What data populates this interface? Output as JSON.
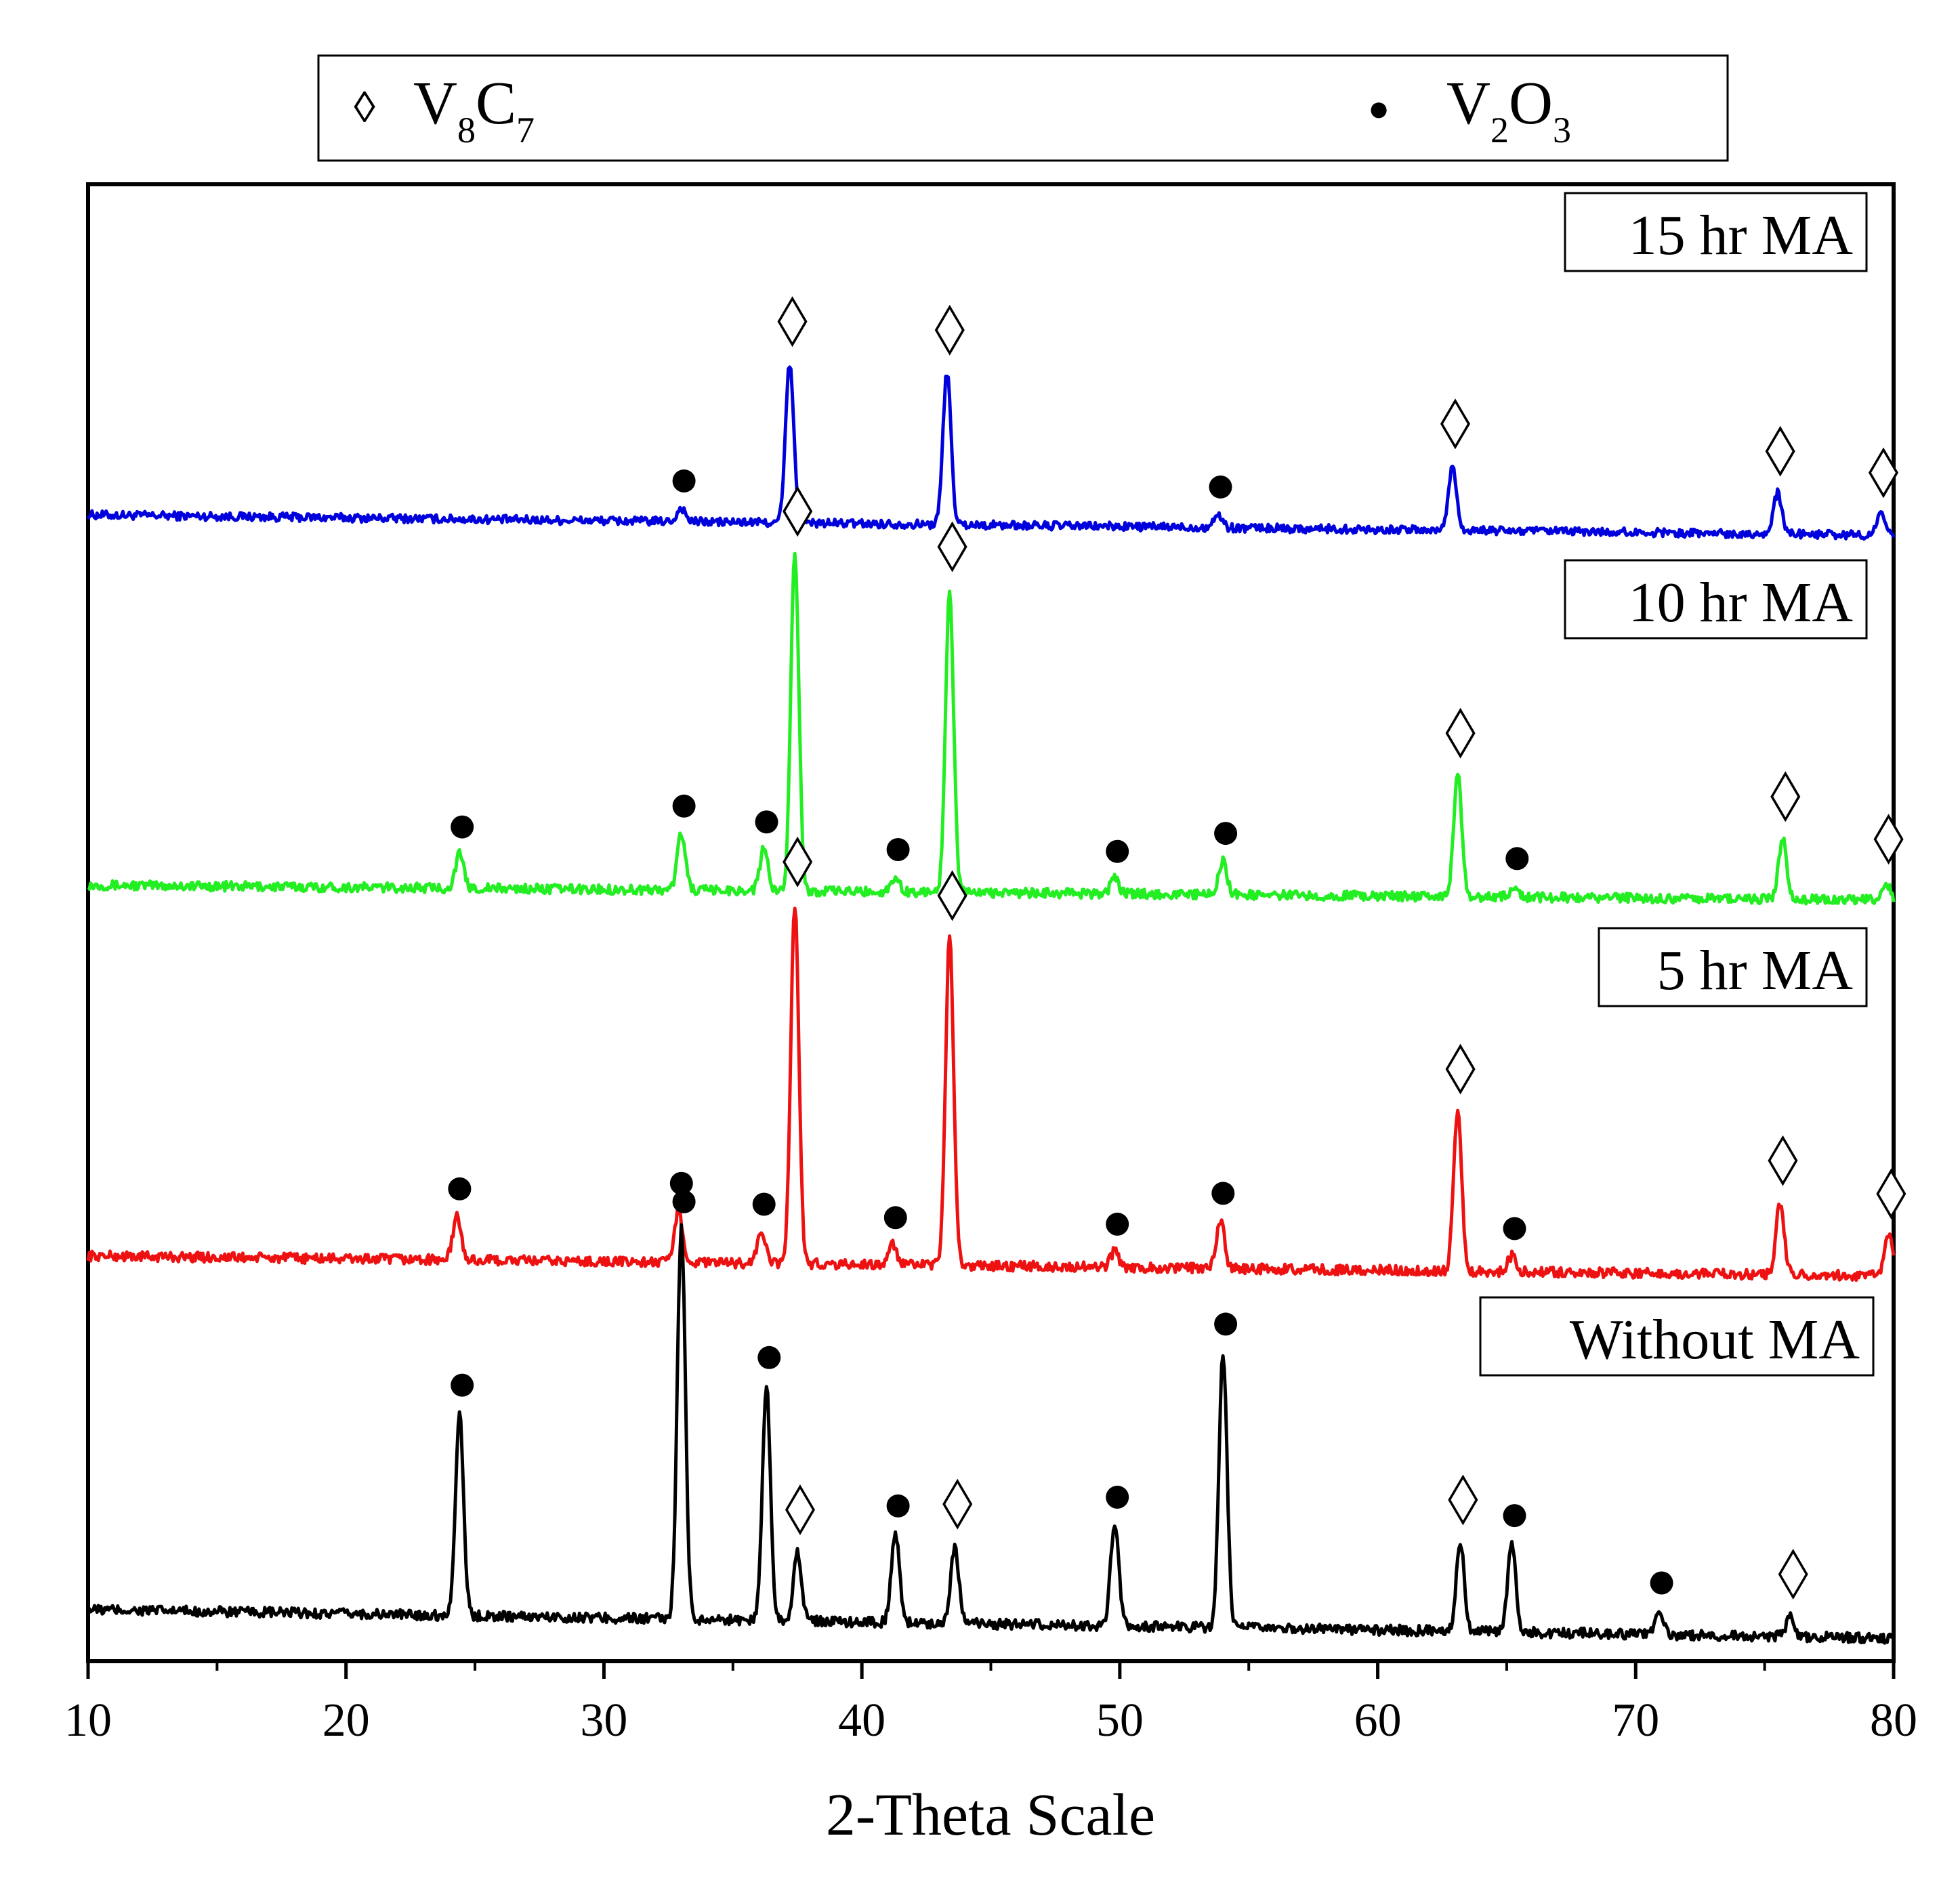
{
  "chart_data": {
    "type": "line",
    "title": "",
    "xlabel": "2-Theta Scale",
    "ylabel": "",
    "xlim": [
      10,
      80
    ],
    "x_ticks": [
      "10",
      "20",
      "30",
      "40",
      "50",
      "60",
      "70",
      "80"
    ],
    "legend": [
      {
        "marker": "diamond",
        "symbol": "◊",
        "base": "V",
        "sub1": "8",
        "mid": "C",
        "sub2": "7",
        "name": "V8C7"
      },
      {
        "marker": "circle",
        "symbol": "●",
        "base": "V",
        "sub1": "2",
        "mid": "O",
        "sub2": "3",
        "name": "V2O3"
      }
    ],
    "series": [
      {
        "name": "15 hr MA",
        "color": "#0000dd",
        "baseline": 0.08,
        "scale": 0.38,
        "start": 0.12,
        "peaks": [
          {
            "x": 33.0,
            "h": 0.04,
            "phase": "V2O3"
          },
          {
            "x": 37.2,
            "h": 0.47,
            "phase": "V8C7"
          },
          {
            "x": 43.3,
            "h": 0.45,
            "phase": "V8C7"
          },
          {
            "x": 53.8,
            "h": 0.04,
            "phase": "V2O3"
          },
          {
            "x": 62.9,
            "h": 0.19,
            "phase": "V8C7"
          },
          {
            "x": 75.5,
            "h": 0.12,
            "phase": "V8C7"
          },
          {
            "x": 79.5,
            "h": 0.06,
            "phase": "V8C7"
          }
        ]
      },
      {
        "name": "10 hr MA",
        "color": "#22ee22",
        "baseline": 0.09,
        "scale": 0.55,
        "start": 0.08,
        "peaks": [
          {
            "x": 24.4,
            "h": 0.09,
            "phase": "V2O3"
          },
          {
            "x": 33.0,
            "h": 0.15,
            "phase": "V2O3"
          },
          {
            "x": 36.2,
            "h": 0.11,
            "phase": "V2O3"
          },
          {
            "x": 37.4,
            "h": 0.89,
            "phase": "V8C7"
          },
          {
            "x": 41.3,
            "h": 0.04,
            "phase": "V2O3"
          },
          {
            "x": 43.4,
            "h": 0.8,
            "phase": "V8C7"
          },
          {
            "x": 49.8,
            "h": 0.04,
            "phase": "V2O3"
          },
          {
            "x": 54.0,
            "h": 0.09,
            "phase": "V2O3"
          },
          {
            "x": 63.1,
            "h": 0.32,
            "phase": "V8C7"
          },
          {
            "x": 65.3,
            "h": 0.03,
            "phase": "V2O3"
          },
          {
            "x": 75.7,
            "h": 0.16,
            "phase": "V8C7"
          },
          {
            "x": 79.7,
            "h": 0.05,
            "phase": "V8C7"
          }
        ]
      },
      {
        "name": "5 hr MA",
        "color": "#ee1111",
        "baseline": 0.1,
        "scale": 0.58,
        "start": 0.1,
        "peaks": [
          {
            "x": 24.3,
            "h": 0.11,
            "phase": "V2O3"
          },
          {
            "x": 32.9,
            "h": 0.13,
            "phase": "V2O3"
          },
          {
            "x": 36.1,
            "h": 0.08,
            "phase": "V2O3"
          },
          {
            "x": 37.4,
            "h": 0.9,
            "phase": "V8C7"
          },
          {
            "x": 41.2,
            "h": 0.05,
            "phase": "V2O3"
          },
          {
            "x": 43.4,
            "h": 0.82,
            "phase": "V8C7"
          },
          {
            "x": 49.8,
            "h": 0.04,
            "phase": "V2O3"
          },
          {
            "x": 53.9,
            "h": 0.12,
            "phase": "V2O3"
          },
          {
            "x": 63.1,
            "h": 0.4,
            "phase": "V8C7"
          },
          {
            "x": 65.2,
            "h": 0.04,
            "phase": "V2O3"
          },
          {
            "x": 75.6,
            "h": 0.18,
            "phase": "V8C7"
          },
          {
            "x": 79.8,
            "h": 0.1,
            "phase": "V8C7"
          }
        ]
      },
      {
        "name": "Without MA",
        "color": "#000000",
        "baseline": 0.12,
        "scale": 0.8,
        "start": 0.14,
        "peaks": [
          {
            "x": 24.4,
            "h": 0.5,
            "phase": "V2O3"
          },
          {
            "x": 33.0,
            "h": 0.96,
            "phase": "V2O3"
          },
          {
            "x": 36.3,
            "h": 0.58,
            "phase": "V2O3"
          },
          {
            "x": 37.5,
            "h": 0.17,
            "phase": "V8C7"
          },
          {
            "x": 41.3,
            "h": 0.22,
            "phase": "V2O3"
          },
          {
            "x": 43.6,
            "h": 0.19,
            "phase": "V8C7"
          },
          {
            "x": 49.8,
            "h": 0.25,
            "phase": "V2O3"
          },
          {
            "x": 54.0,
            "h": 0.68,
            "phase": "V2O3"
          },
          {
            "x": 63.2,
            "h": 0.22,
            "phase": "V8C7"
          },
          {
            "x": 65.2,
            "h": 0.22,
            "phase": "V2O3"
          },
          {
            "x": 70.9,
            "h": 0.06,
            "phase": "V2O3"
          },
          {
            "x": 76.0,
            "h": 0.05,
            "phase": "V8C7"
          }
        ]
      }
    ]
  }
}
